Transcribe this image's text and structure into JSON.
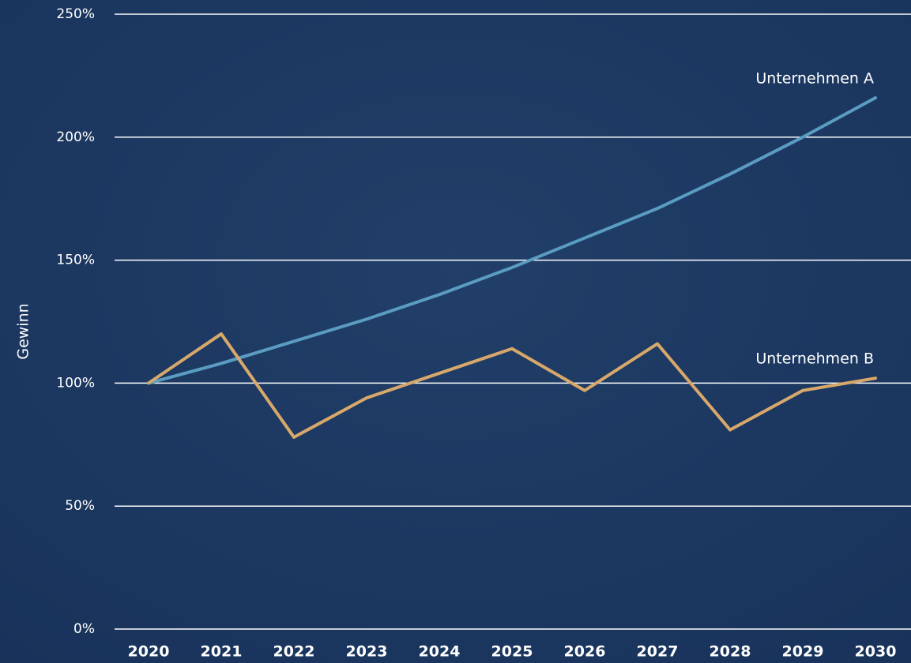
{
  "chart_data": {
    "type": "line",
    "y_label": "Gewinn",
    "categories": [
      "2020",
      "2021",
      "2022",
      "2023",
      "2024",
      "2025",
      "2026",
      "2027",
      "2028",
      "2029",
      "2030"
    ],
    "series": [
      {
        "name": "Unternehmen A",
        "color": "#5a9cc2",
        "values": [
          100,
          108,
          117,
          126,
          136,
          147,
          159,
          171,
          185,
          200,
          216
        ]
      },
      {
        "name": "Unternehmen B",
        "color": "#d8a86a",
        "values": [
          100,
          120,
          78,
          94,
          104,
          114,
          97,
          116,
          81,
          97,
          102
        ]
      }
    ],
    "ylim": [
      0,
      250
    ],
    "yticks": [
      {
        "value": 0,
        "label": "0%"
      },
      {
        "value": 50,
        "label": "50%"
      },
      {
        "value": 100,
        "label": "100%"
      },
      {
        "value": 150,
        "label": "150%"
      },
      {
        "value": 200,
        "label": "200%"
      },
      {
        "value": 250,
        "label": "250%"
      }
    ],
    "grid": true
  }
}
